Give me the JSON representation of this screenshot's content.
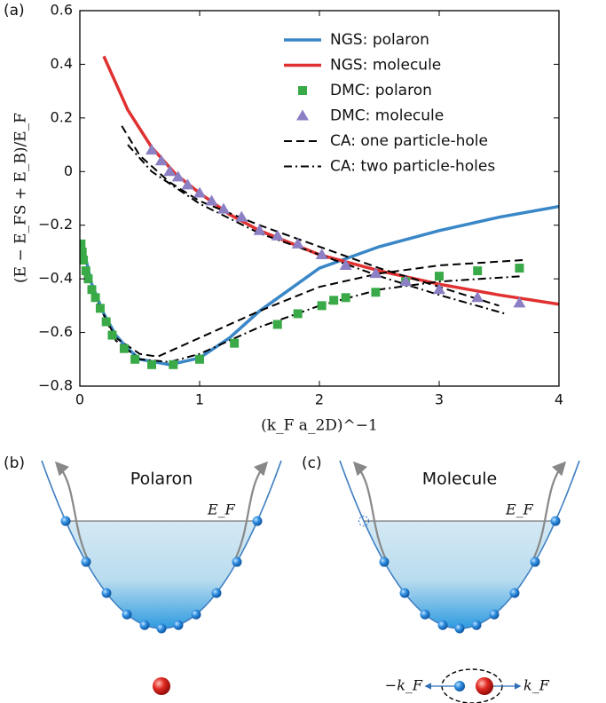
{
  "chart_data": {
    "type": "line",
    "panel_label": "(a)",
    "xlabel": "(k_F a_2D)^−1",
    "ylabel": "(E − E_FS + E_B)/E_F",
    "xlim": [
      0,
      4
    ],
    "ylim": [
      -0.8,
      0.6
    ],
    "xticks": [
      0,
      1,
      2,
      3,
      4
    ],
    "yticks": [
      {
        "value": -0.8,
        "label": "−0.8"
      },
      {
        "value": -0.6,
        "label": "−0.6"
      },
      {
        "value": -0.4,
        "label": "−0.4"
      },
      {
        "value": -0.2,
        "label": "−0.2"
      },
      0,
      0.2,
      0.4,
      0.6
    ],
    "legend": "upper right",
    "series": [
      {
        "name": "NGS: polaron",
        "type": "line",
        "line_style": "solid",
        "color": "#3a87c8",
        "x": [
          0.02,
          0.1,
          0.2,
          0.3,
          0.4,
          0.5,
          0.75,
          1.0,
          1.25,
          1.5,
          2.0,
          2.5,
          3.0,
          3.5,
          4.0
        ],
        "values": [
          -0.27,
          -0.42,
          -0.53,
          -0.61,
          -0.66,
          -0.7,
          -0.72,
          -0.695,
          -0.62,
          -0.52,
          -0.36,
          -0.28,
          -0.22,
          -0.17,
          -0.13
        ]
      },
      {
        "name": "NGS: molecule",
        "type": "line",
        "line_style": "solid",
        "color": "#e03030",
        "x": [
          0.2,
          0.4,
          0.6,
          0.8,
          1.0,
          1.25,
          1.5,
          2.0,
          2.5,
          3.0,
          3.5,
          4.0
        ],
        "values": [
          0.43,
          0.23,
          0.09,
          -0.01,
          -0.08,
          -0.16,
          -0.22,
          -0.31,
          -0.37,
          -0.42,
          -0.46,
          -0.495
        ]
      },
      {
        "name": "DMC: polaron",
        "type": "scatter",
        "marker": "square",
        "color": "#3aaa48",
        "x": [
          0.01,
          0.02,
          0.03,
          0.05,
          0.07,
          0.1,
          0.13,
          0.17,
          0.22,
          0.27,
          0.37,
          0.46,
          0.6,
          0.78,
          1.0,
          1.29,
          1.65,
          1.82,
          2.02,
          2.12,
          2.22,
          2.47,
          2.72,
          3.0,
          3.32,
          3.67
        ],
        "values": [
          -0.27,
          -0.3,
          -0.33,
          -0.37,
          -0.4,
          -0.44,
          -0.47,
          -0.51,
          -0.56,
          -0.61,
          -0.66,
          -0.7,
          -0.72,
          -0.72,
          -0.7,
          -0.64,
          -0.57,
          -0.53,
          -0.5,
          -0.48,
          -0.47,
          -0.45,
          -0.41,
          -0.39,
          -0.37,
          -0.36
        ]
      },
      {
        "name": "DMC: molecule",
        "type": "scatter",
        "marker": "triangle",
        "color": "#8c7fc4",
        "x": [
          0.6,
          0.68,
          0.75,
          0.82,
          0.9,
          1.0,
          1.1,
          1.2,
          1.35,
          1.5,
          1.65,
          1.82,
          2.02,
          2.22,
          2.47,
          2.72,
          3.0,
          3.32,
          3.67
        ],
        "values": [
          0.08,
          0.04,
          0.0,
          -0.02,
          -0.05,
          -0.08,
          -0.11,
          -0.14,
          -0.17,
          -0.22,
          -0.24,
          -0.27,
          -0.31,
          -0.35,
          -0.38,
          -0.41,
          -0.44,
          -0.47,
          -0.49
        ]
      },
      {
        "name": "CA: one particle-hole",
        "type": "line",
        "line_style": "dashed",
        "color": "#000000",
        "x": [
          0.35,
          0.5,
          0.75,
          1.0,
          1.5,
          2.0,
          2.5,
          3.0,
          3.5,
          null,
          0.1,
          0.3,
          0.5,
          0.65,
          1.0,
          1.5,
          2.0,
          2.5,
          3.0,
          3.7
        ],
        "values": [
          0.17,
          0.06,
          -0.04,
          -0.11,
          -0.2,
          -0.28,
          -0.36,
          -0.43,
          -0.5,
          null,
          -0.45,
          -0.62,
          -0.68,
          -0.69,
          -0.62,
          -0.52,
          -0.43,
          -0.38,
          -0.35,
          -0.33
        ]
      },
      {
        "name": "CA: two particle-holes",
        "type": "line",
        "line_style": "dashdot",
        "color": "#000000",
        "x": [
          0.4,
          0.6,
          0.8,
          1.0,
          1.5,
          2.0,
          2.5,
          3.0,
          3.55,
          null,
          0.1,
          0.3,
          0.5,
          0.75,
          1.0,
          1.5,
          2.0,
          2.5,
          3.0,
          3.7
        ],
        "values": [
          0.1,
          0.0,
          -0.06,
          -0.12,
          -0.23,
          -0.31,
          -0.39,
          -0.46,
          -0.53,
          null,
          -0.44,
          -0.63,
          -0.7,
          -0.71,
          -0.68,
          -0.58,
          -0.5,
          -0.44,
          -0.41,
          -0.39
        ]
      }
    ]
  },
  "diagrams": [
    {
      "label": "(b)",
      "title": "Polaron",
      "fermi_label": "E_F"
    },
    {
      "label": "(c)",
      "title": "Molecule",
      "fermi_label": "E_F",
      "momentum_labels": [
        "−k_F",
        "k_F"
      ]
    }
  ]
}
